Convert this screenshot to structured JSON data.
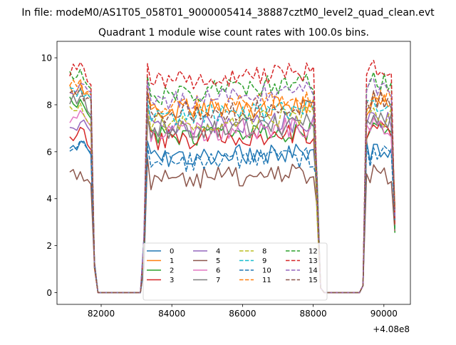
{
  "chart_data": {
    "type": "line",
    "suptitle": "In file: modeM0/AS1T05_058T01_9000005414_38887cztM0_level2_quad_clean.evt",
    "title": "Quadrant 1 module wise count rates with 100.0s bins.",
    "xlabel": "",
    "ylabel": "",
    "x_offset_text": "+4.08e8",
    "xlim": [
      80750,
      90750
    ],
    "ylim": [
      -0.5,
      10.7
    ],
    "x_ticks": [
      82000,
      84000,
      86000,
      88000,
      90000
    ],
    "x_tick_labels": [
      "82000",
      "84000",
      "86000",
      "88000",
      "90000"
    ],
    "y_ticks": [
      0,
      2,
      4,
      6,
      8,
      10
    ],
    "y_tick_labels": [
      "0",
      "2",
      "4",
      "6",
      "8",
      "10"
    ],
    "grid": false,
    "legend": {
      "placement": "lower center",
      "columns": 4
    },
    "x_range_of_segments": [
      {
        "start": 81110,
        "end": 81810,
        "step": 100
      },
      {
        "start": 81910,
        "end": 83110,
        "step": 100,
        "value": 0
      },
      {
        "start": 83210,
        "end": 88210,
        "step": 100
      },
      {
        "start": 88310,
        "end": 89310,
        "step": 100,
        "value": 0
      },
      {
        "start": 89410,
        "end": 90310,
        "step": 100
      }
    ],
    "series": [
      {
        "name": "0",
        "color": "#1f77b4",
        "dash": "solid",
        "base": 5.7,
        "first": 6.2
      },
      {
        "name": "1",
        "color": "#ff7f0e",
        "dash": "solid",
        "base": 7.7,
        "first": 8.7
      },
      {
        "name": "2",
        "color": "#2ca02c",
        "dash": "solid",
        "base": 6.6,
        "first": 8.0
      },
      {
        "name": "3",
        "color": "#d62728",
        "dash": "solid",
        "base": 6.5,
        "first": 6.8
      },
      {
        "name": "4",
        "color": "#9467bd",
        "dash": "solid",
        "base": 7.0,
        "first": 7.0
      },
      {
        "name": "5",
        "color": "#8c564b",
        "dash": "solid",
        "base": 4.8,
        "first": 4.9
      },
      {
        "name": "6",
        "color": "#e377c2",
        "dash": "solid",
        "base": 6.8,
        "first": 7.5
      },
      {
        "name": "7",
        "color": "#7f7f7f",
        "dash": "solid",
        "base": 6.9,
        "first": 8.1
      },
      {
        "name": "8",
        "color": "#bcbd22",
        "dash": "dashed",
        "base": 7.2,
        "first": 7.8
      },
      {
        "name": "9",
        "color": "#17becf",
        "dash": "dashed",
        "base": 7.5,
        "first": 8.4
      },
      {
        "name": "10",
        "color": "#1f77b4",
        "dash": "dashed",
        "base": 5.5,
        "first": 6.2
      },
      {
        "name": "11",
        "color": "#ff7f0e",
        "dash": "dashed",
        "base": 7.9,
        "first": 8.8
      },
      {
        "name": "12",
        "color": "#2ca02c",
        "dash": "dashed",
        "base": 8.4,
        "first": 9.2
      },
      {
        "name": "13",
        "color": "#d62728",
        "dash": "dashed",
        "base": 8.9,
        "first": 9.5
      },
      {
        "name": "14",
        "color": "#9467bd",
        "dash": "dashed",
        "base": 8.1,
        "first": 8.6
      },
      {
        "name": "15",
        "color": "#8c564b",
        "dash": "dashed",
        "base": 7.6,
        "first": 8.4
      }
    ]
  }
}
